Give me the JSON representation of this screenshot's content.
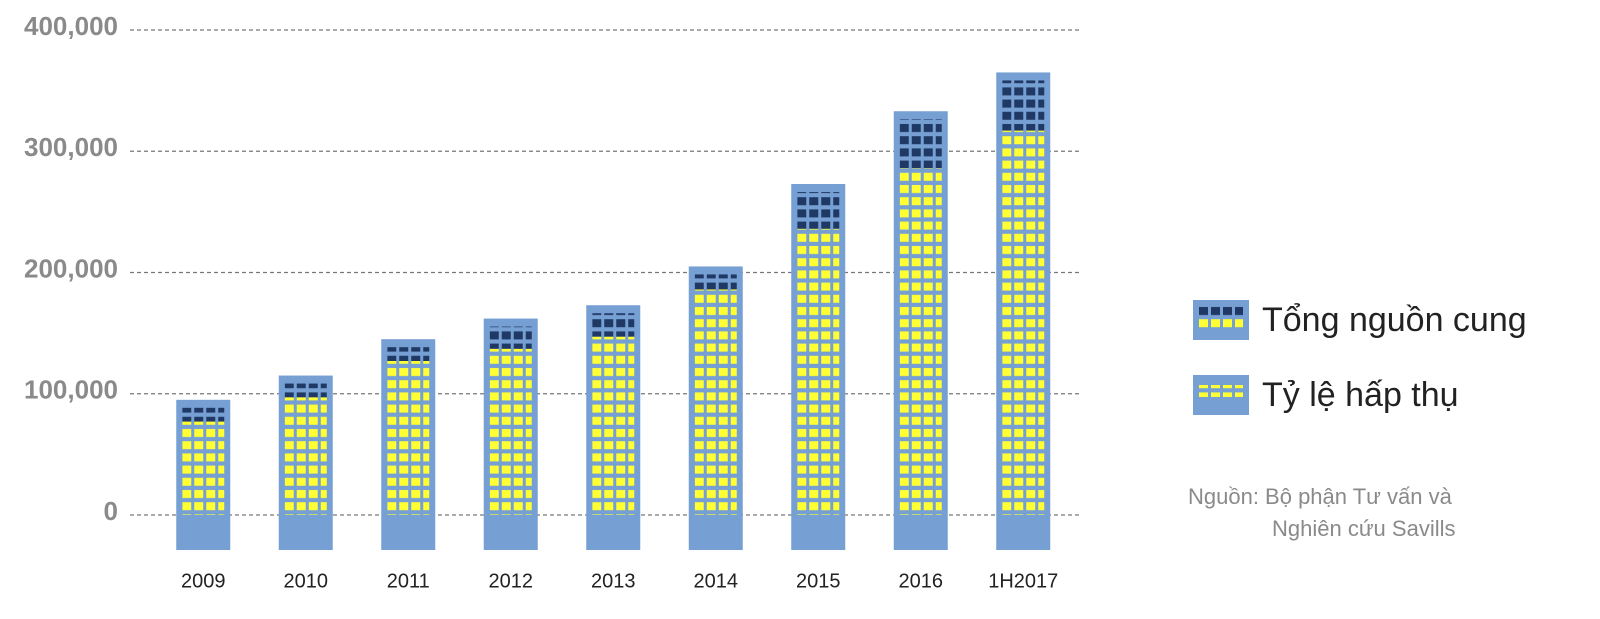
{
  "chart_data": {
    "type": "bar",
    "categories": [
      "2009",
      "2010",
      "2011",
      "2012",
      "2013",
      "2014",
      "2015",
      "2016",
      "1H2017"
    ],
    "series": [
      {
        "name": "Tổng nguồn cung",
        "color": "#1f3864",
        "values": [
          95000,
          115000,
          145000,
          162000,
          173000,
          205000,
          273000,
          333000,
          365000
        ]
      },
      {
        "name": "Tỷ lệ hấp thụ",
        "color": "#ffff33",
        "values": [
          77000,
          97000,
          127000,
          137000,
          147000,
          186000,
          236000,
          286000,
          317000
        ]
      }
    ],
    "ylim": [
      0,
      400000
    ],
    "yticks": [
      0,
      {
        "value": 100000,
        "label": "100,000"
      },
      {
        "value": 200000,
        "label": "200,000"
      },
      {
        "value": 300000,
        "label": "300,000"
      },
      {
        "value": 400000,
        "label": "400,000"
      }
    ],
    "grid": true,
    "bar_color": "#769fd3",
    "source": [
      "Nguồn: Bộ phận Tư vấn và",
      "Nghiên cứu Savills"
    ]
  }
}
